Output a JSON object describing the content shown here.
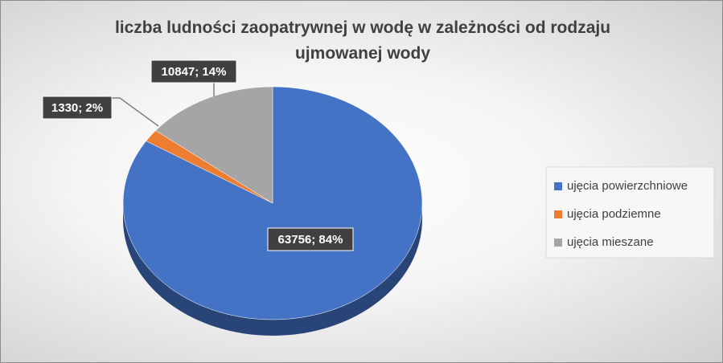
{
  "chart_data": {
    "type": "pie",
    "title": "liczba ludności zaopatrywnej w wodę w zależności od rodzaju ujmowanej wody",
    "categories": [
      "ujęcia powierzchniowe",
      "ujęcia podziemne",
      "ujęcia mieszane"
    ],
    "values": [
      63756,
      1330,
      10847
    ],
    "value_labels": [
      "63756; 84%",
      "1330; 2%",
      "10847; 14%"
    ],
    "colors": [
      "#4472c4",
      "#ed7d31",
      "#a5a5a5"
    ],
    "legend": "right"
  }
}
